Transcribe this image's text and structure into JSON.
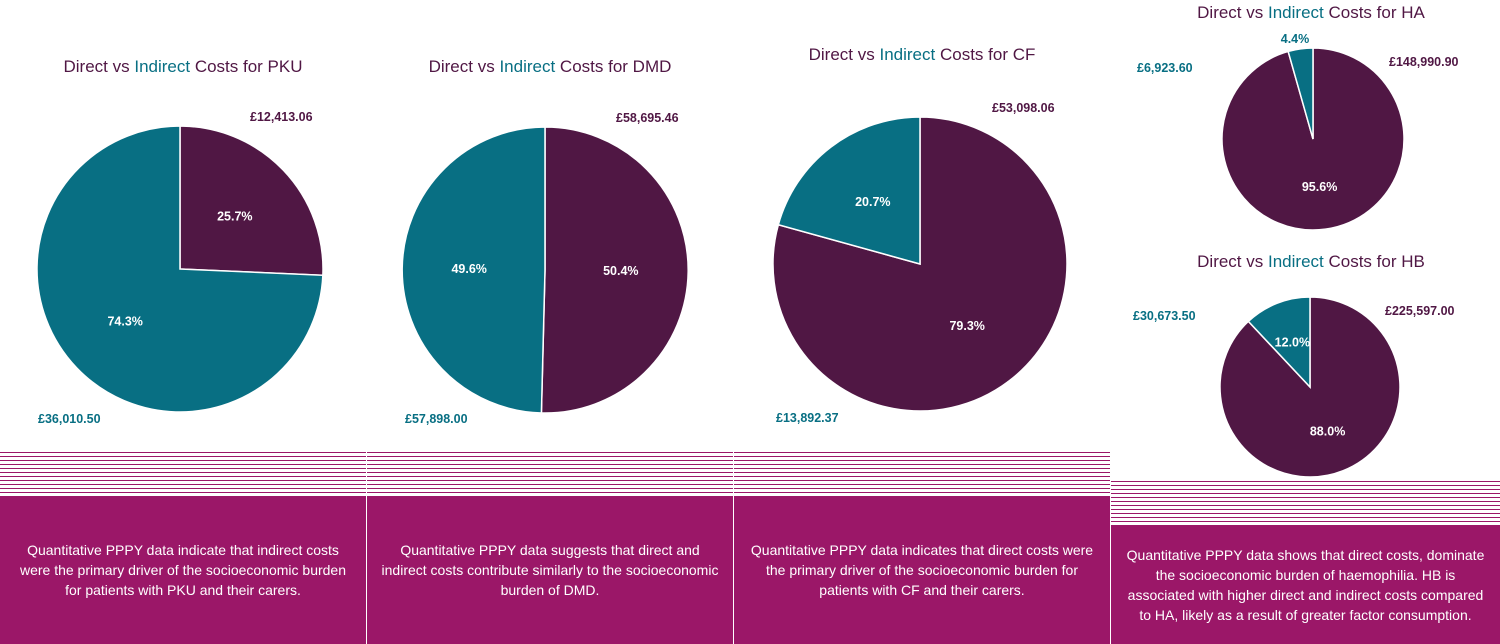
{
  "colors": {
    "direct": "#501744",
    "indirect": "#086f83",
    "footer": "#9b1768"
  },
  "chart_data": [
    {
      "type": "pie",
      "title": {
        "direct": "Direct",
        "vs": " vs ",
        "indirect": "Indirect",
        "suffix": " Costs for PKU"
      },
      "slices": [
        {
          "name": "Direct",
          "value": 25.7,
          "label": "25.7%",
          "amount": "£12,413.06"
        },
        {
          "name": "Indirect",
          "value": 74.3,
          "label": "74.3%",
          "amount": "£36,010.50"
        }
      ],
      "caption": "Quantitative PPPY data indicate that indirect costs were the primary driver of the socioeconomic burden for patients with PKU and their carers."
    },
    {
      "type": "pie",
      "title": {
        "direct": "Direct",
        "vs": " vs ",
        "indirect": "Indirect",
        "suffix": " Costs for DMD"
      },
      "slices": [
        {
          "name": "Direct",
          "value": 50.4,
          "label": "50.4%",
          "amount": "£58,695.46"
        },
        {
          "name": "Indirect",
          "value": 49.6,
          "label": "49.6%",
          "amount": "£57,898.00"
        }
      ],
      "caption": "Quantitative PPPY data suggests that direct and indirect costs contribute similarly to the socioeconomic burden of DMD."
    },
    {
      "type": "pie",
      "title": {
        "direct": "Direct",
        "vs": " vs ",
        "indirect": "Indirect",
        "suffix": " Costs for CF"
      },
      "slices": [
        {
          "name": "Direct",
          "value": 79.3,
          "label": "79.3%",
          "amount": "£53,098.06"
        },
        {
          "name": "Indirect",
          "value": 20.7,
          "label": "20.7%",
          "amount": "£13,892.37"
        }
      ],
      "caption": "Quantitative PPPY data indicates that direct costs were the primary driver of the socioeconomic burden for patients with CF and their carers."
    },
    {
      "type": "pie",
      "title": {
        "direct": "Direct",
        "vs": " vs ",
        "indirect": "Indirect",
        "suffix": " Costs for HA"
      },
      "slices": [
        {
          "name": "Direct",
          "value": 95.6,
          "label": "95.6%",
          "amount": "£148,990.90"
        },
        {
          "name": "Indirect",
          "value": 4.4,
          "label": "4.4%",
          "amount": "£6,923.60"
        }
      ]
    },
    {
      "type": "pie",
      "title": {
        "direct": "Direct",
        "vs": " vs ",
        "indirect": "Indirect",
        "suffix": " Costs for HB"
      },
      "slices": [
        {
          "name": "Direct",
          "value": 88.0,
          "label": "88.0%",
          "amount": "£225,597.00"
        },
        {
          "name": "Indirect",
          "value": 12.0,
          "label": "12.0%",
          "amount": "£30,673.50"
        }
      ],
      "caption": "Quantitative PPPY data shows that direct costs, dominate the socioeconomic burden of haemophilia. HB is associated with higher direct and indirect costs compared to HA, likely as a result of greater factor consumption."
    }
  ]
}
